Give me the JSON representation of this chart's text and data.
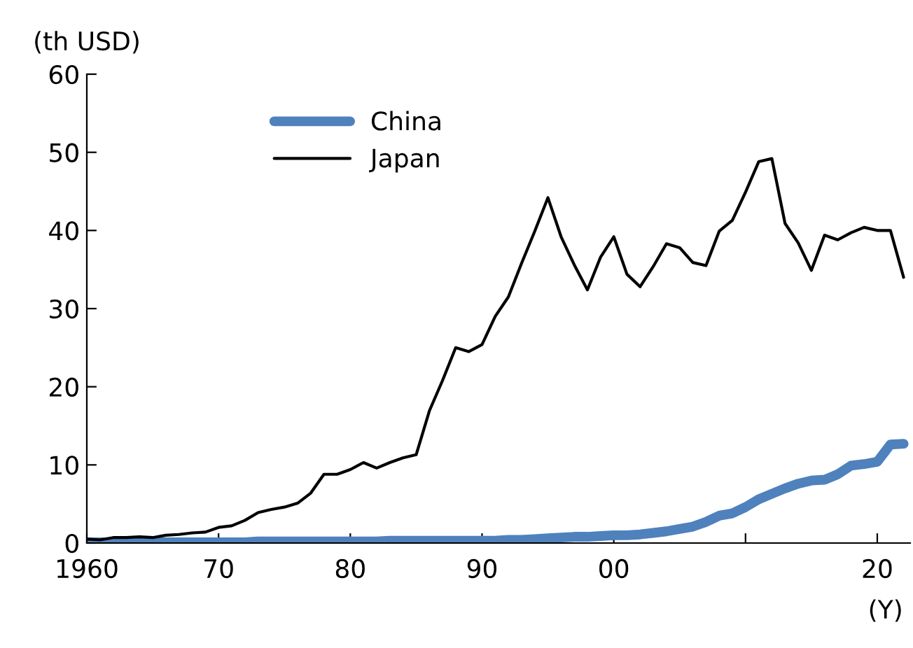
{
  "chart_data": {
    "type": "line",
    "ylabel": "(th USD)",
    "xlabel": "(Y)",
    "x": [
      1960,
      1961,
      1962,
      1963,
      1964,
      1965,
      1966,
      1967,
      1968,
      1969,
      1970,
      1971,
      1972,
      1973,
      1974,
      1975,
      1976,
      1977,
      1978,
      1979,
      1980,
      1981,
      1982,
      1983,
      1984,
      1985,
      1986,
      1987,
      1988,
      1989,
      1990,
      1991,
      1992,
      1993,
      1994,
      1995,
      1996,
      1997,
      1998,
      1999,
      2000,
      2001,
      2002,
      2003,
      2004,
      2005,
      2006,
      2007,
      2008,
      2009,
      2010,
      2011,
      2012,
      2013,
      2014,
      2015,
      2016,
      2017,
      2018,
      2019,
      2020,
      2021,
      2022
    ],
    "series": [
      {
        "name": "China",
        "color": "#4f81bd",
        "values": [
          0.1,
          0.1,
          0.1,
          0.1,
          0.1,
          0.1,
          0.1,
          0.1,
          0.1,
          0.1,
          0.1,
          0.1,
          0.1,
          0.2,
          0.2,
          0.2,
          0.2,
          0.2,
          0.2,
          0.2,
          0.2,
          0.2,
          0.2,
          0.3,
          0.3,
          0.3,
          0.3,
          0.3,
          0.3,
          0.3,
          0.3,
          0.3,
          0.4,
          0.4,
          0.5,
          0.6,
          0.7,
          0.8,
          0.8,
          0.9,
          1.0,
          1.0,
          1.1,
          1.3,
          1.5,
          1.8,
          2.1,
          2.7,
          3.5,
          3.8,
          4.6,
          5.6,
          6.3,
          7.0,
          7.6,
          8.0,
          8.1,
          8.8,
          9.9,
          10.1,
          10.4,
          12.6,
          12.7
        ]
      },
      {
        "name": "Japan",
        "color": "#000000",
        "values": [
          0.5,
          0.4,
          0.7,
          0.7,
          0.8,
          0.7,
          1.0,
          1.1,
          1.3,
          1.4,
          2.0,
          2.2,
          2.9,
          3.9,
          4.3,
          4.6,
          5.1,
          6.4,
          8.8,
          8.8,
          9.4,
          10.3,
          9.6,
          10.3,
          10.9,
          11.3,
          16.9,
          20.8,
          25.0,
          24.5,
          25.4,
          29.0,
          31.5,
          35.8,
          39.9,
          44.2,
          39.2,
          35.6,
          32.4,
          36.6,
          39.2,
          34.4,
          32.8,
          35.4,
          38.3,
          37.8,
          35.9,
          35.5,
          39.9,
          41.3,
          44.9,
          48.8,
          49.2,
          40.9,
          38.4,
          34.9,
          39.4,
          38.8,
          39.7,
          40.4,
          40.0,
          40.0,
          34.0
        ]
      }
    ],
    "xlim": [
      1960,
      2022.5
    ],
    "xticks": [
      {
        "value": 1960,
        "label": "1960"
      },
      {
        "value": 1970,
        "label": "70"
      },
      {
        "value": 1980,
        "label": "80"
      },
      {
        "value": 1990,
        "label": "90"
      },
      {
        "value": 2000,
        "label": "00"
      },
      {
        "value": 2010,
        "label": null
      },
      {
        "value": 2020,
        "label": "20"
      }
    ],
    "ylim": [
      0,
      60
    ],
    "yticks": [
      0,
      10,
      20,
      30,
      40,
      50,
      60
    ],
    "grid": false,
    "legend": "top left"
  }
}
